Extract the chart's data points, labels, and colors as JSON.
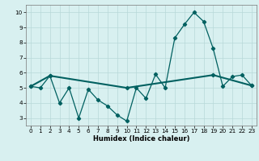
{
  "line1_x": [
    0,
    1,
    2,
    3,
    4,
    5,
    6,
    7,
    8,
    9,
    10,
    11,
    12,
    13,
    14,
    15,
    16,
    17,
    18,
    19,
    20,
    21,
    22,
    23
  ],
  "line1_y": [
    5.1,
    5.0,
    5.8,
    4.0,
    5.0,
    3.0,
    4.9,
    4.2,
    3.8,
    3.2,
    2.8,
    5.0,
    4.3,
    5.9,
    5.0,
    8.3,
    9.2,
    10.0,
    9.4,
    7.6,
    5.1,
    5.75,
    5.85,
    5.15
  ],
  "line2_x": [
    0,
    2,
    10,
    19,
    23
  ],
  "line2_y": [
    5.1,
    5.8,
    5.0,
    5.85,
    5.15
  ],
  "line_color": "#006060",
  "bg_color": "#d8f0f0",
  "grid_color": "#b8d8d8",
  "xlabel": "Humidex (Indice chaleur)",
  "ylim": [
    2.5,
    10.5
  ],
  "xlim": [
    -0.5,
    23.5
  ],
  "yticks": [
    3,
    4,
    5,
    6,
    7,
    8,
    9,
    10
  ],
  "xticks": [
    0,
    1,
    2,
    3,
    4,
    5,
    6,
    7,
    8,
    9,
    10,
    11,
    12,
    13,
    14,
    15,
    16,
    17,
    18,
    19,
    20,
    21,
    22,
    23
  ],
  "xlabel_fontsize": 6.0,
  "tick_fontsize": 5.2,
  "line1_lw": 0.9,
  "line2_lw": 1.5,
  "marker_size": 2.2
}
